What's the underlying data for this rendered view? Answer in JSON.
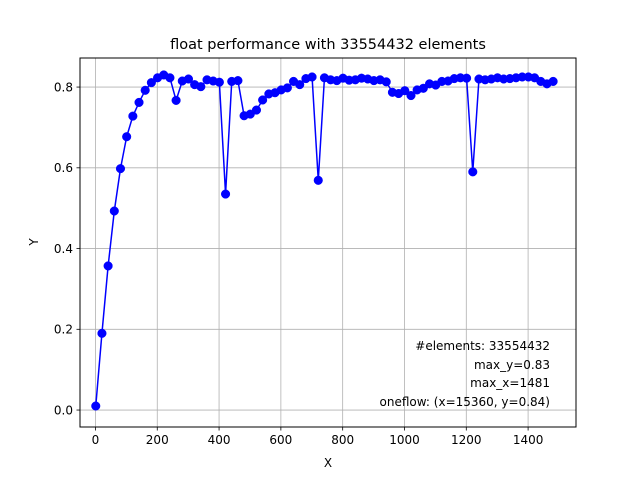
{
  "chart_data": {
    "type": "line",
    "title": "float performance with 33554432 elements",
    "xlabel": "X",
    "ylabel": "Y",
    "xlim": [
      -50,
      1555
    ],
    "ylim": [
      -0.042,
      0.872
    ],
    "xticks": [
      0,
      200,
      400,
      600,
      800,
      1000,
      1200,
      1400
    ],
    "yticks": [
      0.0,
      0.2,
      0.4,
      0.6,
      0.8
    ],
    "ytick_labels": [
      "0.0",
      "0.2",
      "0.4",
      "0.6",
      "0.8"
    ],
    "grid": true,
    "series": [
      {
        "color": "#0000ff",
        "marker": "circle",
        "x": [
          1,
          21,
          41,
          61,
          81,
          101,
          121,
          141,
          161,
          181,
          201,
          221,
          241,
          261,
          281,
          301,
          321,
          341,
          361,
          381,
          401,
          421,
          441,
          461,
          481,
          501,
          521,
          541,
          561,
          581,
          601,
          621,
          641,
          661,
          681,
          701,
          721,
          741,
          761,
          781,
          801,
          821,
          841,
          861,
          881,
          901,
          921,
          941,
          961,
          981,
          1001,
          1021,
          1041,
          1061,
          1081,
          1101,
          1121,
          1141,
          1161,
          1181,
          1201,
          1221,
          1241,
          1261,
          1281,
          1301,
          1321,
          1341,
          1361,
          1381,
          1401,
          1421,
          1441,
          1461,
          1481
        ],
        "y": [
          0.01,
          0.19,
          0.357,
          0.493,
          0.598,
          0.677,
          0.728,
          0.762,
          0.792,
          0.811,
          0.823,
          0.83,
          0.823,
          0.767,
          0.815,
          0.82,
          0.806,
          0.801,
          0.818,
          0.815,
          0.812,
          0.535,
          0.814,
          0.816,
          0.729,
          0.733,
          0.743,
          0.768,
          0.783,
          0.786,
          0.793,
          0.798,
          0.814,
          0.806,
          0.821,
          0.825,
          0.569,
          0.823,
          0.818,
          0.816,
          0.822,
          0.817,
          0.818,
          0.822,
          0.82,
          0.816,
          0.818,
          0.813,
          0.787,
          0.784,
          0.791,
          0.779,
          0.793,
          0.797,
          0.808,
          0.805,
          0.814,
          0.815,
          0.821,
          0.823,
          0.822,
          0.59,
          0.82,
          0.818,
          0.82,
          0.823,
          0.82,
          0.821,
          0.823,
          0.825,
          0.825,
          0.823,
          0.814,
          0.808,
          0.814
        ]
      }
    ],
    "annotations": [
      "#elements: 33554432",
      "max_y=0.83",
      "max_x=1481",
      "oneflow: (x=15360, y=0.84)"
    ],
    "annotation_placement": "bottom-right"
  }
}
